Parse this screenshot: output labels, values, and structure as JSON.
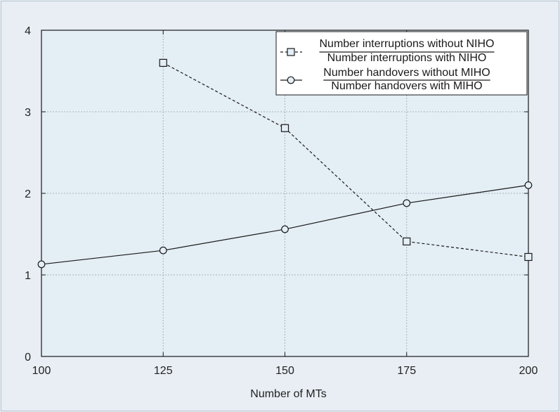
{
  "chart_data": {
    "type": "line",
    "title": "",
    "xlabel": "Number of MTs",
    "ylabel": "",
    "xlim": [
      100,
      200
    ],
    "ylim": [
      0,
      4
    ],
    "xticks": [
      100,
      125,
      150,
      175,
      200
    ],
    "yticks": [
      0,
      1,
      2,
      3,
      4
    ],
    "grid": true,
    "legend_position": "top-right",
    "series": [
      {
        "name_numerator": "Number interruptions without NIHO",
        "name_denominator": "Number interruptions with NIHO",
        "marker": "square",
        "line_style": "dashed",
        "x": [
          125,
          150,
          175,
          200
        ],
        "values": [
          3.6,
          2.8,
          1.41,
          1.22
        ]
      },
      {
        "name_numerator": "Number handovers without MIHO",
        "name_denominator": "Number handovers with MIHO",
        "marker": "circle",
        "line_style": "solid",
        "x": [
          100,
          125,
          150,
          175,
          200
        ],
        "values": [
          1.13,
          1.3,
          1.56,
          1.88,
          2.1
        ]
      }
    ],
    "colors": {
      "plot_background": "#e4eef5",
      "frame_background": "#e8eef4",
      "line": "#1a1a1a",
      "grid": "#a7b2bb"
    }
  }
}
